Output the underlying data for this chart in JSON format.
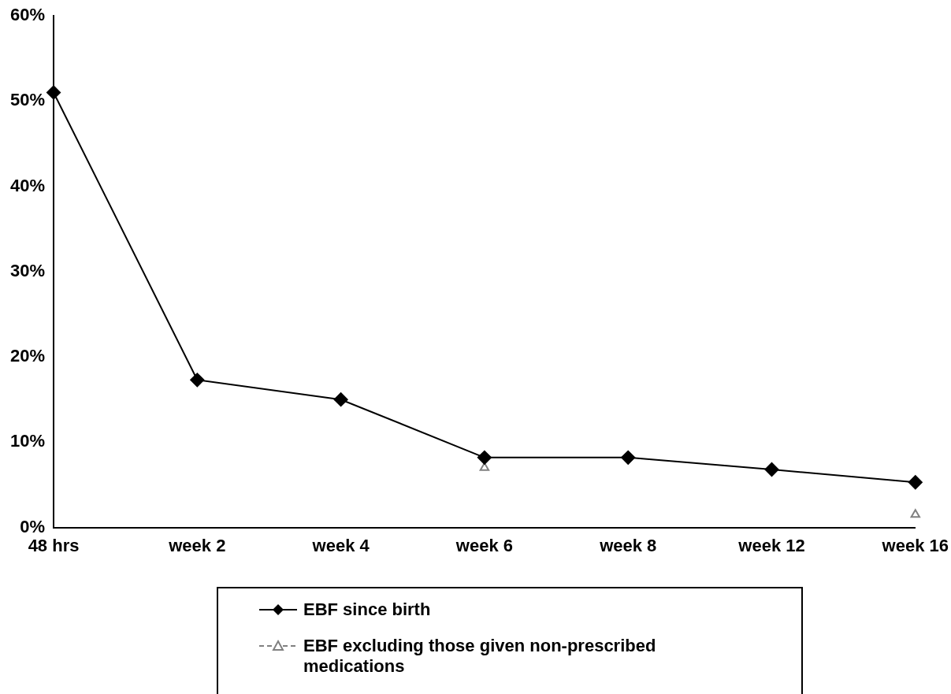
{
  "chart_data": {
    "type": "line",
    "categories": [
      "48 hrs",
      "week 2",
      "week 4",
      "week 6",
      "week 8",
      "week 12",
      "week 16"
    ],
    "series": [
      {
        "name": "EBF since birth",
        "color": "#000000",
        "marker": "diamond",
        "line_style": "solid",
        "values": [
          51,
          17.3,
          15,
          8.2,
          8.2,
          6.8,
          5.3
        ]
      },
      {
        "name": "EBF excluding those given non-prescribed medications",
        "type": "scatter",
        "color": "#808080",
        "marker": "triangle",
        "line_style": "dashed",
        "values": [
          null,
          null,
          null,
          7,
          null,
          null,
          1.5
        ]
      }
    ],
    "ylim": [
      0,
      60
    ],
    "yticks": [
      {
        "value": 0,
        "label": "0%"
      },
      {
        "value": 10,
        "label": "10%"
      },
      {
        "value": 20,
        "label": "20%"
      },
      {
        "value": 30,
        "label": "30%"
      },
      {
        "value": 40,
        "label": "40%"
      },
      {
        "value": 50,
        "label": "50%"
      },
      {
        "value": 60,
        "label": "60%"
      }
    ],
    "grid": false,
    "legend": "bottom"
  }
}
